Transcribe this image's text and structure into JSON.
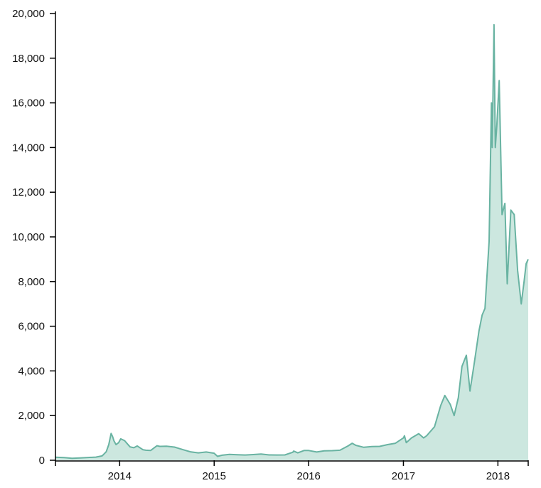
{
  "chart_data": {
    "type": "area",
    "title": "",
    "xlabel": "",
    "ylabel": "",
    "xlim": [
      "2013-04-28",
      "2018-04-28"
    ],
    "ylim": [
      0,
      20000
    ],
    "grid": false,
    "legend": "none",
    "color_line": "#69b3a2",
    "color_fill": "#cce7df",
    "x_ticks": [
      "2014",
      "2015",
      "2016",
      "2017",
      "2018"
    ],
    "y_ticks": [
      "0",
      "2,000",
      "4,000",
      "6,000",
      "8,000",
      "10,000",
      "12,000",
      "14,000",
      "16,000",
      "18,000",
      "20,000"
    ],
    "series": [
      {
        "x": [
          "2013-04-28",
          "2013-06-01",
          "2013-07-01",
          "2013-08-01",
          "2013-09-01",
          "2013-10-01",
          "2013-10-25",
          "2013-11-10",
          "2013-11-20",
          "2013-11-29",
          "2013-12-05",
          "2013-12-10",
          "2013-12-18",
          "2013-12-28",
          "2014-01-05",
          "2014-01-20",
          "2014-02-10",
          "2014-02-25",
          "2014-03-10",
          "2014-04-01",
          "2014-04-12",
          "2014-05-01",
          "2014-05-25",
          "2014-06-05",
          "2014-07-01",
          "2014-08-01",
          "2014-09-01",
          "2014-10-01",
          "2014-11-01",
          "2014-12-01",
          "2015-01-01",
          "2015-01-14",
          "2015-02-01",
          "2015-03-01",
          "2015-04-01",
          "2015-05-01",
          "2015-06-01",
          "2015-07-01",
          "2015-08-01",
          "2015-09-01",
          "2015-10-01",
          "2015-11-01",
          "2015-11-04",
          "2015-11-20",
          "2015-12-15",
          "2016-01-01",
          "2016-02-01",
          "2016-03-01",
          "2016-04-01",
          "2016-05-01",
          "2016-06-01",
          "2016-06-17",
          "2016-07-01",
          "2016-08-01",
          "2016-09-01",
          "2016-10-01",
          "2016-11-01",
          "2016-12-01",
          "2017-01-01",
          "2017-01-05",
          "2017-01-12",
          "2017-02-01",
          "2017-03-01",
          "2017-03-20",
          "2017-04-01",
          "2017-05-01",
          "2017-05-25",
          "2017-06-10",
          "2017-07-01",
          "2017-07-16",
          "2017-08-01",
          "2017-08-15",
          "2017-09-01",
          "2017-09-15",
          "2017-10-01",
          "2017-10-20",
          "2017-11-01",
          "2017-11-12",
          "2017-11-28",
          "2017-12-07",
          "2017-12-10",
          "2017-12-17",
          "2017-12-22",
          "2017-12-28",
          "2018-01-06",
          "2018-01-17",
          "2018-01-28",
          "2018-02-06",
          "2018-02-20",
          "2018-03-05",
          "2018-03-18",
          "2018-04-01",
          "2018-04-12",
          "2018-04-20",
          "2018-04-28"
        ],
        "values": [
          135,
          120,
          90,
          105,
          125,
          140,
          195,
          380,
          700,
          1200,
          1050,
          870,
          700,
          790,
          960,
          880,
          600,
          560,
          640,
          470,
          450,
          440,
          650,
          620,
          630,
          590,
          480,
          380,
          330,
          370,
          315,
          175,
          225,
          260,
          245,
          235,
          255,
          280,
          240,
          235,
          240,
          360,
          410,
          330,
          440,
          435,
          370,
          420,
          430,
          450,
          640,
          760,
          670,
          580,
          610,
          620,
          700,
          760,
          1000,
          1100,
          790,
          1000,
          1190,
          1000,
          1100,
          1500,
          2450,
          2900,
          2500,
          2000,
          2800,
          4200,
          4700,
          3100,
          4300,
          5800,
          6500,
          6800,
          9800,
          16000,
          14000,
          19500,
          14000,
          15000,
          17000,
          11000,
          11500,
          7900,
          11200,
          11000,
          8500,
          7000,
          8000,
          8800,
          9000
        ]
      }
    ]
  }
}
